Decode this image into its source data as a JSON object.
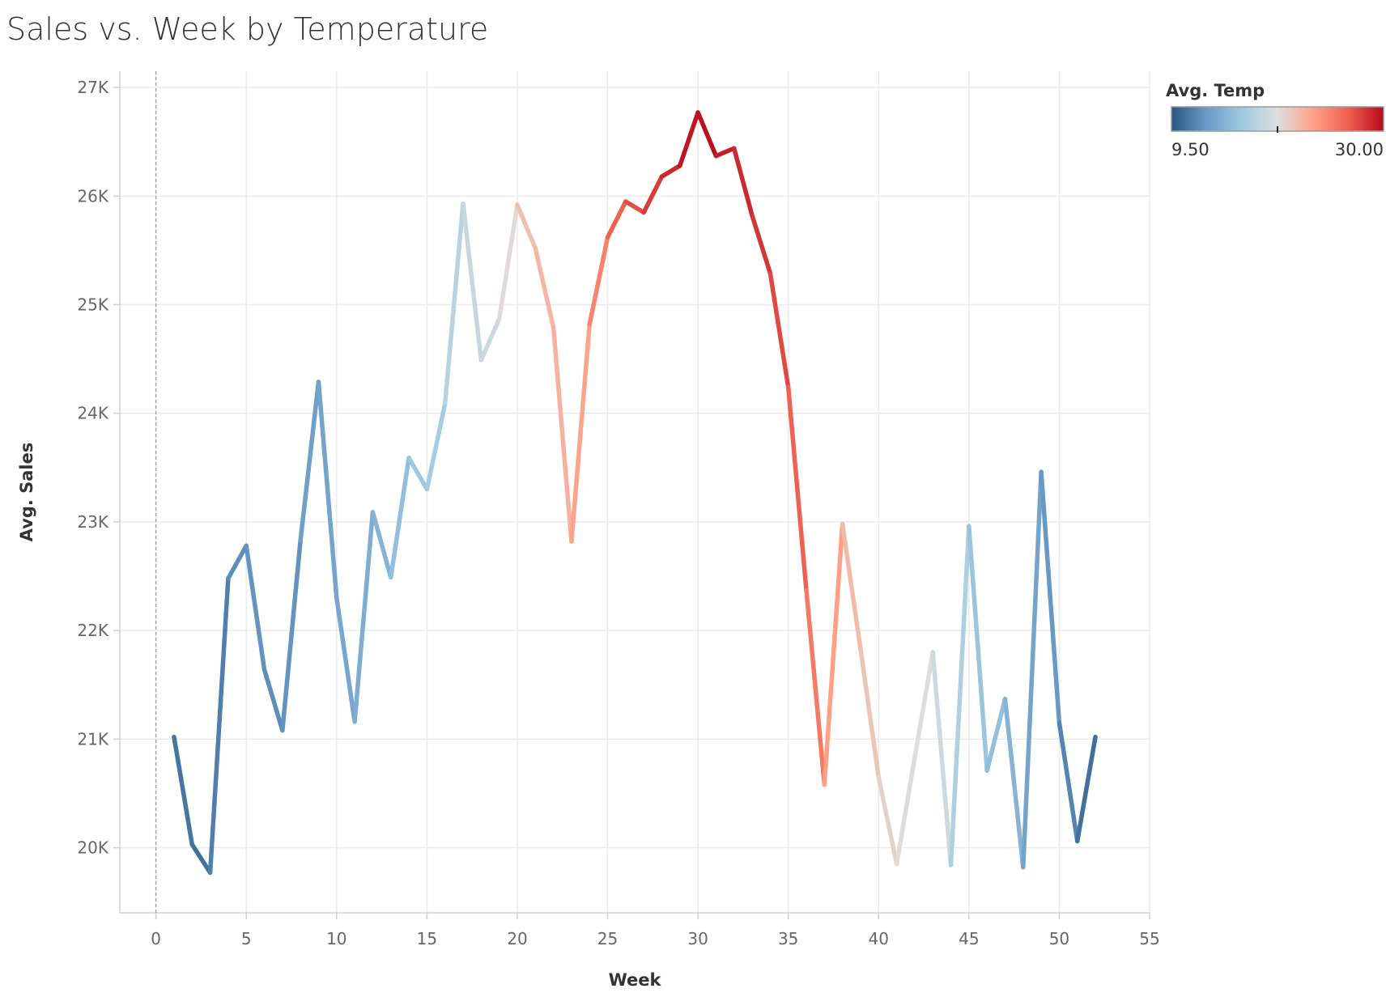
{
  "chart_data": {
    "type": "line",
    "title": "Sales vs. Week by Temperature",
    "xlabel": "Week",
    "ylabel": "Avg. Sales",
    "xlim": [
      -2,
      55
    ],
    "ylim": [
      19400,
      27150
    ],
    "xticks": [
      0,
      5,
      10,
      15,
      20,
      25,
      30,
      35,
      40,
      45,
      50,
      55
    ],
    "yticks": [
      20000,
      21000,
      22000,
      23000,
      24000,
      25000,
      26000,
      27000
    ],
    "ytick_labels": [
      "20K",
      "21K",
      "22K",
      "23K",
      "24K",
      "25K",
      "26K",
      "27K"
    ],
    "grid": true,
    "color_legend": {
      "title": "Avg. Temp",
      "min_label": "9.50",
      "max_label": "30.00",
      "min": 9.5,
      "max": 30.0,
      "colors": [
        "#2a5783",
        "#6b9bc7",
        "#9fcae2",
        "#dedede",
        "#ffa288",
        "#ef5f4f",
        "#b60a1c"
      ],
      "placement": "top-right"
    },
    "series": [
      {
        "x": [
          1,
          2,
          3,
          4,
          5,
          6,
          7,
          8,
          9,
          10,
          11,
          12,
          13,
          14,
          15,
          16,
          17,
          18,
          19,
          20,
          21,
          22,
          23,
          24,
          25,
          26,
          27,
          28,
          29,
          30,
          31,
          32,
          33,
          34,
          35,
          36,
          37,
          38,
          39,
          40,
          41,
          42,
          43,
          44,
          45,
          46,
          47,
          48,
          49,
          50,
          51,
          52
        ],
        "y": [
          21020,
          20030,
          19770,
          22480,
          22780,
          21640,
          21080,
          22830,
          24290,
          22300,
          21160,
          23090,
          22490,
          23590,
          23300,
          24090,
          25930,
          24490,
          24870,
          25920,
          25520,
          24790,
          22820,
          24820,
          25620,
          25950,
          25850,
          26180,
          26280,
          26770,
          26370,
          26440,
          25820,
          25290,
          24240,
          22370,
          20580,
          22980,
          21830,
          20650,
          19850,
          20830,
          21800,
          19840,
          22960,
          20710,
          21370,
          19820,
          23460,
          21150,
          20060,
          21020
        ],
        "temp": [
          11.5,
          10.5,
          11.0,
          12.0,
          12.5,
          12.5,
          12.0,
          13.0,
          13.5,
          13.5,
          14.0,
          14.5,
          15.0,
          16.0,
          16.5,
          17.0,
          18.5,
          18.5,
          19.0,
          21.0,
          22.0,
          22.0,
          22.5,
          23.5,
          26.0,
          27.0,
          27.5,
          28.5,
          29.0,
          30.0,
          29.5,
          29.0,
          28.5,
          28.0,
          27.0,
          26.0,
          24.5,
          22.0,
          21.5,
          21.0,
          20.0,
          19.8,
          19.8,
          18.0,
          16.5,
          15.5,
          15.5,
          14.0,
          13.0,
          12.5,
          11.0,
          10.5
        ]
      }
    ]
  }
}
